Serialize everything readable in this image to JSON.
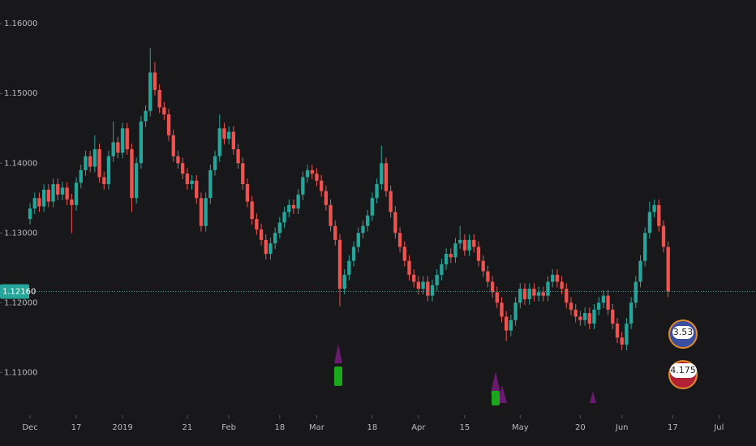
{
  "chart_data": {
    "type": "candlestick",
    "open": [
      1.132,
      1.1335,
      1.135,
      1.1338,
      1.1362,
      1.1345,
      1.137,
      1.1355,
      1.1365,
      1.1348,
      1.134,
      1.1372,
      1.139,
      1.141,
      1.1395,
      1.142,
      1.138,
      1.137,
      1.141,
      1.143,
      1.1415,
      1.145,
      1.142,
      1.135,
      1.14,
      1.146,
      1.1475,
      1.153,
      1.1505,
      1.148,
      1.147,
      1.144,
      1.141,
      1.14,
      1.1385,
      1.137,
      1.1375,
      1.135,
      1.131,
      1.135,
      1.139,
      1.141,
      1.145,
      1.1435,
      1.1445,
      1.142,
      1.14,
      1.137,
      1.1345,
      1.132,
      1.1305,
      1.129,
      1.127,
      1.1285,
      1.13,
      1.1315,
      1.133,
      1.134,
      1.1335,
      1.1355,
      1.138,
      1.139,
      1.1385,
      1.1375,
      1.136,
      1.134,
      1.131,
      1.129,
      1.122,
      1.124,
      1.126,
      1.128,
      1.13,
      1.131,
      1.1325,
      1.135,
      1.137,
      1.14,
      1.136,
      1.133,
      1.13,
      1.128,
      1.126,
      1.124,
      1.123,
      1.122,
      1.123,
      1.121,
      1.1225,
      1.124,
      1.1255,
      1.127,
      1.1265,
      1.1285,
      1.129,
      1.1275,
      1.129,
      1.128,
      1.126,
      1.1245,
      1.123,
      1.1215,
      1.12,
      1.118,
      1.116,
      1.1175,
      1.12,
      1.122,
      1.1205,
      1.122,
      1.121,
      1.1215,
      1.121,
      1.123,
      1.124,
      1.123,
      1.122,
      1.12,
      1.119,
      1.118,
      1.1175,
      1.1185,
      1.117,
      1.119,
      1.12,
      1.121,
      1.119,
      1.117,
      1.115,
      1.114,
      1.117,
      1.12,
      1.123,
      1.126,
      1.13,
      1.133,
      1.134,
      1.131,
      1.128
    ],
    "high": [
      1.1343,
      1.1358,
      1.1358,
      1.137,
      1.137,
      1.1378,
      1.1378,
      1.1373,
      1.1373,
      1.1356,
      1.138,
      1.1398,
      1.1418,
      1.1418,
      1.144,
      1.1428,
      1.1388,
      1.1418,
      1.146,
      1.1438,
      1.1458,
      1.1458,
      1.1428,
      1.1408,
      1.1468,
      1.1483,
      1.1565,
      1.1545,
      1.1513,
      1.1488,
      1.1478,
      1.1448,
      1.1418,
      1.1408,
      1.1393,
      1.1383,
      1.1383,
      1.1358,
      1.1358,
      1.1398,
      1.1418,
      1.147,
      1.1458,
      1.1453,
      1.1453,
      1.1428,
      1.1408,
      1.1378,
      1.1353,
      1.1328,
      1.1313,
      1.1298,
      1.1293,
      1.1308,
      1.1323,
      1.1338,
      1.1348,
      1.1348,
      1.1363,
      1.1388,
      1.1398,
      1.1398,
      1.1393,
      1.1383,
      1.1368,
      1.1348,
      1.1318,
      1.1298,
      1.1248,
      1.1268,
      1.1288,
      1.1308,
      1.1318,
      1.1333,
      1.1358,
      1.1378,
      1.1425,
      1.1408,
      1.1368,
      1.1338,
      1.1308,
      1.1288,
      1.1268,
      1.1248,
      1.1238,
      1.1238,
      1.1238,
      1.1233,
      1.1248,
      1.1263,
      1.1278,
      1.1278,
      1.1293,
      1.131,
      1.1298,
      1.1298,
      1.1298,
      1.1288,
      1.1268,
      1.1253,
      1.1238,
      1.1223,
      1.1208,
      1.1188,
      1.1183,
      1.1208,
      1.1228,
      1.1228,
      1.1228,
      1.1228,
      1.1223,
      1.1223,
      1.1238,
      1.1248,
      1.1248,
      1.1238,
      1.1228,
      1.1208,
      1.1198,
      1.1188,
      1.1193,
      1.1193,
      1.1198,
      1.1208,
      1.1218,
      1.1218,
      1.1198,
      1.1178,
      1.1158,
      1.1178,
      1.1208,
      1.1238,
      1.1268,
      1.1308,
      1.1345,
      1.1348,
      1.1348,
      1.1318,
      1.1288
    ],
    "low": [
      1.1312,
      1.1327,
      1.133,
      1.133,
      1.1337,
      1.1337,
      1.1347,
      1.1347,
      1.134,
      1.13,
      1.1332,
      1.1364,
      1.1382,
      1.1387,
      1.1387,
      1.1372,
      1.1362,
      1.1362,
      1.1402,
      1.1407,
      1.1407,
      1.1412,
      1.133,
      1.1342,
      1.1392,
      1.1452,
      1.1467,
      1.1497,
      1.1472,
      1.1462,
      1.1432,
      1.1402,
      1.1392,
      1.1377,
      1.1362,
      1.1362,
      1.1342,
      1.1302,
      1.1302,
      1.1342,
      1.1382,
      1.1402,
      1.1427,
      1.1427,
      1.1412,
      1.1392,
      1.1362,
      1.1337,
      1.1312,
      1.1297,
      1.1282,
      1.1262,
      1.1262,
      1.1277,
      1.1292,
      1.1307,
      1.1322,
      1.1327,
      1.1327,
      1.1347,
      1.1372,
      1.1377,
      1.1367,
      1.1352,
      1.1332,
      1.1302,
      1.1282,
      1.1195,
      1.1212,
      1.1232,
      1.1252,
      1.1272,
      1.1292,
      1.1302,
      1.1317,
      1.1342,
      1.1362,
      1.1352,
      1.1322,
      1.1292,
      1.1272,
      1.1252,
      1.1232,
      1.1222,
      1.1212,
      1.1212,
      1.1202,
      1.1202,
      1.1217,
      1.1232,
      1.1247,
      1.1257,
      1.1257,
      1.1277,
      1.1267,
      1.1267,
      1.1272,
      1.1252,
      1.1237,
      1.1222,
      1.1207,
      1.1192,
      1.1172,
      1.1145,
      1.1152,
      1.1167,
      1.1192,
      1.1197,
      1.1197,
      1.1202,
      1.1202,
      1.1202,
      1.1202,
      1.1222,
      1.1222,
      1.1212,
      1.1192,
      1.1182,
      1.1172,
      1.1167,
      1.1167,
      1.1162,
      1.1162,
      1.1182,
      1.1192,
      1.1182,
      1.1162,
      1.1142,
      1.1132,
      1.1132,
      1.1162,
      1.1192,
      1.1222,
      1.1252,
      1.1292,
      1.1322,
      1.1302,
      1.1272,
      1.1208
    ],
    "close": [
      1.1335,
      1.135,
      1.1338,
      1.1362,
      1.1345,
      1.137,
      1.1355,
      1.1365,
      1.1348,
      1.134,
      1.1372,
      1.139,
      1.141,
      1.1395,
      1.142,
      1.138,
      1.137,
      1.141,
      1.143,
      1.1415,
      1.145,
      1.142,
      1.135,
      1.14,
      1.146,
      1.1475,
      1.153,
      1.1505,
      1.148,
      1.147,
      1.144,
      1.141,
      1.14,
      1.1385,
      1.137,
      1.1375,
      1.135,
      1.131,
      1.135,
      1.139,
      1.141,
      1.145,
      1.1435,
      1.1445,
      1.142,
      1.14,
      1.137,
      1.1345,
      1.132,
      1.1305,
      1.129,
      1.127,
      1.1285,
      1.13,
      1.1315,
      1.133,
      1.134,
      1.1335,
      1.1355,
      1.138,
      1.139,
      1.1385,
      1.1375,
      1.136,
      1.134,
      1.131,
      1.129,
      1.122,
      1.124,
      1.126,
      1.128,
      1.13,
      1.131,
      1.1325,
      1.135,
      1.137,
      1.14,
      1.136,
      1.133,
      1.13,
      1.128,
      1.126,
      1.124,
      1.123,
      1.122,
      1.123,
      1.121,
      1.1225,
      1.124,
      1.1255,
      1.127,
      1.1265,
      1.1285,
      1.129,
      1.1275,
      1.129,
      1.128,
      1.126,
      1.1245,
      1.123,
      1.1215,
      1.12,
      1.118,
      1.116,
      1.1175,
      1.12,
      1.122,
      1.1205,
      1.122,
      1.121,
      1.1215,
      1.121,
      1.123,
      1.124,
      1.123,
      1.122,
      1.12,
      1.119,
      1.118,
      1.1175,
      1.1185,
      1.117,
      1.119,
      1.12,
      1.121,
      1.119,
      1.117,
      1.115,
      1.114,
      1.117,
      1.12,
      1.123,
      1.126,
      1.13,
      1.133,
      1.134,
      1.131,
      1.128,
      1.1216
    ],
    "up_color": "#26a69a",
    "down_color": "#ef5350",
    "ylim": [
      1.1048,
      1.1634
    ],
    "yticks": [
      {
        "value": 1.16,
        "label": "1.16000"
      },
      {
        "value": 1.15,
        "label": "1.15000"
      },
      {
        "value": 1.14,
        "label": "1.14000"
      },
      {
        "value": 1.13,
        "label": "1.13000"
      },
      {
        "value": 1.12,
        "label": "1.12000"
      },
      {
        "value": 1.11,
        "label": "1.11000"
      }
    ],
    "xlim": [
      -6.5,
      157
    ],
    "xticks": [
      {
        "value": 0,
        "label": "Dec"
      },
      {
        "value": 10,
        "label": "17"
      },
      {
        "value": 20,
        "label": "2019"
      },
      {
        "value": 34,
        "label": "21"
      },
      {
        "value": 43,
        "label": "Feb"
      },
      {
        "value": 54,
        "label": "18"
      },
      {
        "value": 62,
        "label": "Mar"
      },
      {
        "value": 74,
        "label": "18"
      },
      {
        "value": 84,
        "label": "Apr"
      },
      {
        "value": 94,
        "label": "15"
      },
      {
        "value": 106,
        "label": "May"
      },
      {
        "value": 119,
        "label": "20"
      },
      {
        "value": 128,
        "label": "Jun"
      },
      {
        "value": 139,
        "label": "17"
      },
      {
        "value": 149,
        "label": "Jul"
      }
    ],
    "last_price": {
      "value": 1.1216,
      "label": "1.12160"
    },
    "annotations": [
      "3.53",
      "4.175"
    ]
  }
}
